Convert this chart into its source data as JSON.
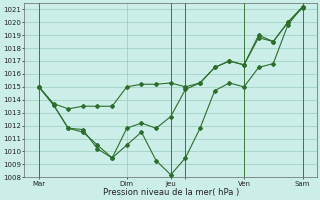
{
  "xlabel": "Pression niveau de la mer( hPa )",
  "bg_color": "#cceee8",
  "grid_color": "#99ccbb",
  "line_color": "#2d6e2d",
  "vline_color": "#3a7a3a",
  "ylim": [
    1008,
    1021.5
  ],
  "ytick_min": 1008,
  "ytick_max": 1021,
  "xlim_min": 0,
  "xlim_max": 20,
  "xtick_positions": [
    1,
    7,
    10,
    11,
    15,
    19
  ],
  "xtick_labels": [
    "Mar",
    "Dim",
    "Jeu",
    "",
    "Ven",
    "Sam"
  ],
  "vline_positions": [
    1,
    10,
    11,
    15,
    19
  ],
  "line1_x": [
    1,
    2,
    3,
    4,
    5,
    6,
    7,
    8,
    9,
    10,
    11,
    12,
    13,
    14,
    15,
    16,
    17,
    18,
    19
  ],
  "line1_y": [
    1015.0,
    1013.7,
    1013.3,
    1013.5,
    1013.5,
    1013.5,
    1015.0,
    1015.2,
    1015.2,
    1015.3,
    1015.0,
    1015.3,
    1016.5,
    1017.0,
    1016.7,
    1018.8,
    1018.5,
    1020.0,
    1021.1
  ],
  "line2_x": [
    1,
    2,
    3,
    4,
    5,
    6,
    7,
    8,
    9,
    10,
    11,
    12,
    13,
    14,
    15,
    16,
    17,
    18,
    19
  ],
  "line2_y": [
    1015.0,
    1013.6,
    1011.8,
    1011.5,
    1010.5,
    1009.5,
    1011.8,
    1012.2,
    1011.8,
    1012.7,
    1014.8,
    1015.3,
    1016.5,
    1017.0,
    1016.7,
    1019.0,
    1018.5,
    1020.0,
    1021.2
  ],
  "line3_x": [
    1,
    2,
    3,
    4,
    5,
    6,
    7,
    8,
    9,
    10,
    11,
    12,
    13,
    14,
    15,
    16,
    17,
    18,
    19
  ],
  "line3_y": [
    1015.0,
    1013.6,
    1011.8,
    1011.7,
    1010.2,
    1009.5,
    1010.5,
    1011.5,
    1009.3,
    1008.2,
    1009.5,
    1011.8,
    1014.7,
    1015.3,
    1015.0,
    1016.5,
    1016.8,
    1019.8,
    1021.2
  ],
  "marker": "D",
  "markersize": 2.0,
  "linewidth": 0.8,
  "xlabel_fontsize": 6.0,
  "tick_fontsize": 5.0
}
